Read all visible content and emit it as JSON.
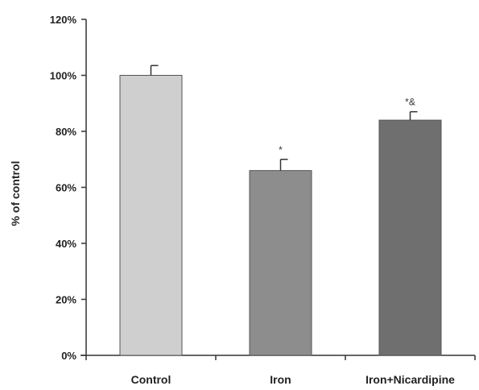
{
  "chart_data": {
    "type": "bar",
    "title": "",
    "xlabel": "",
    "ylabel": "% of control",
    "ylim": [
      0,
      120
    ],
    "y_tick_values": [
      0,
      20,
      40,
      60,
      80,
      100,
      120
    ],
    "y_tick_labels": [
      "0%",
      "20%",
      "40%",
      "60%",
      "80%",
      "100%",
      "120%"
    ],
    "grid": false,
    "legend": "none",
    "categories": [
      "Control",
      "Iron",
      "Iron+Nicardipine"
    ],
    "values": [
      100,
      66,
      84
    ],
    "errors": [
      3.5,
      4,
      3
    ],
    "annotations": [
      "",
      "*",
      "*&"
    ],
    "colors": [
      "#cfcfcf",
      "#8d8d8d",
      "#6f6f6f"
    ]
  }
}
